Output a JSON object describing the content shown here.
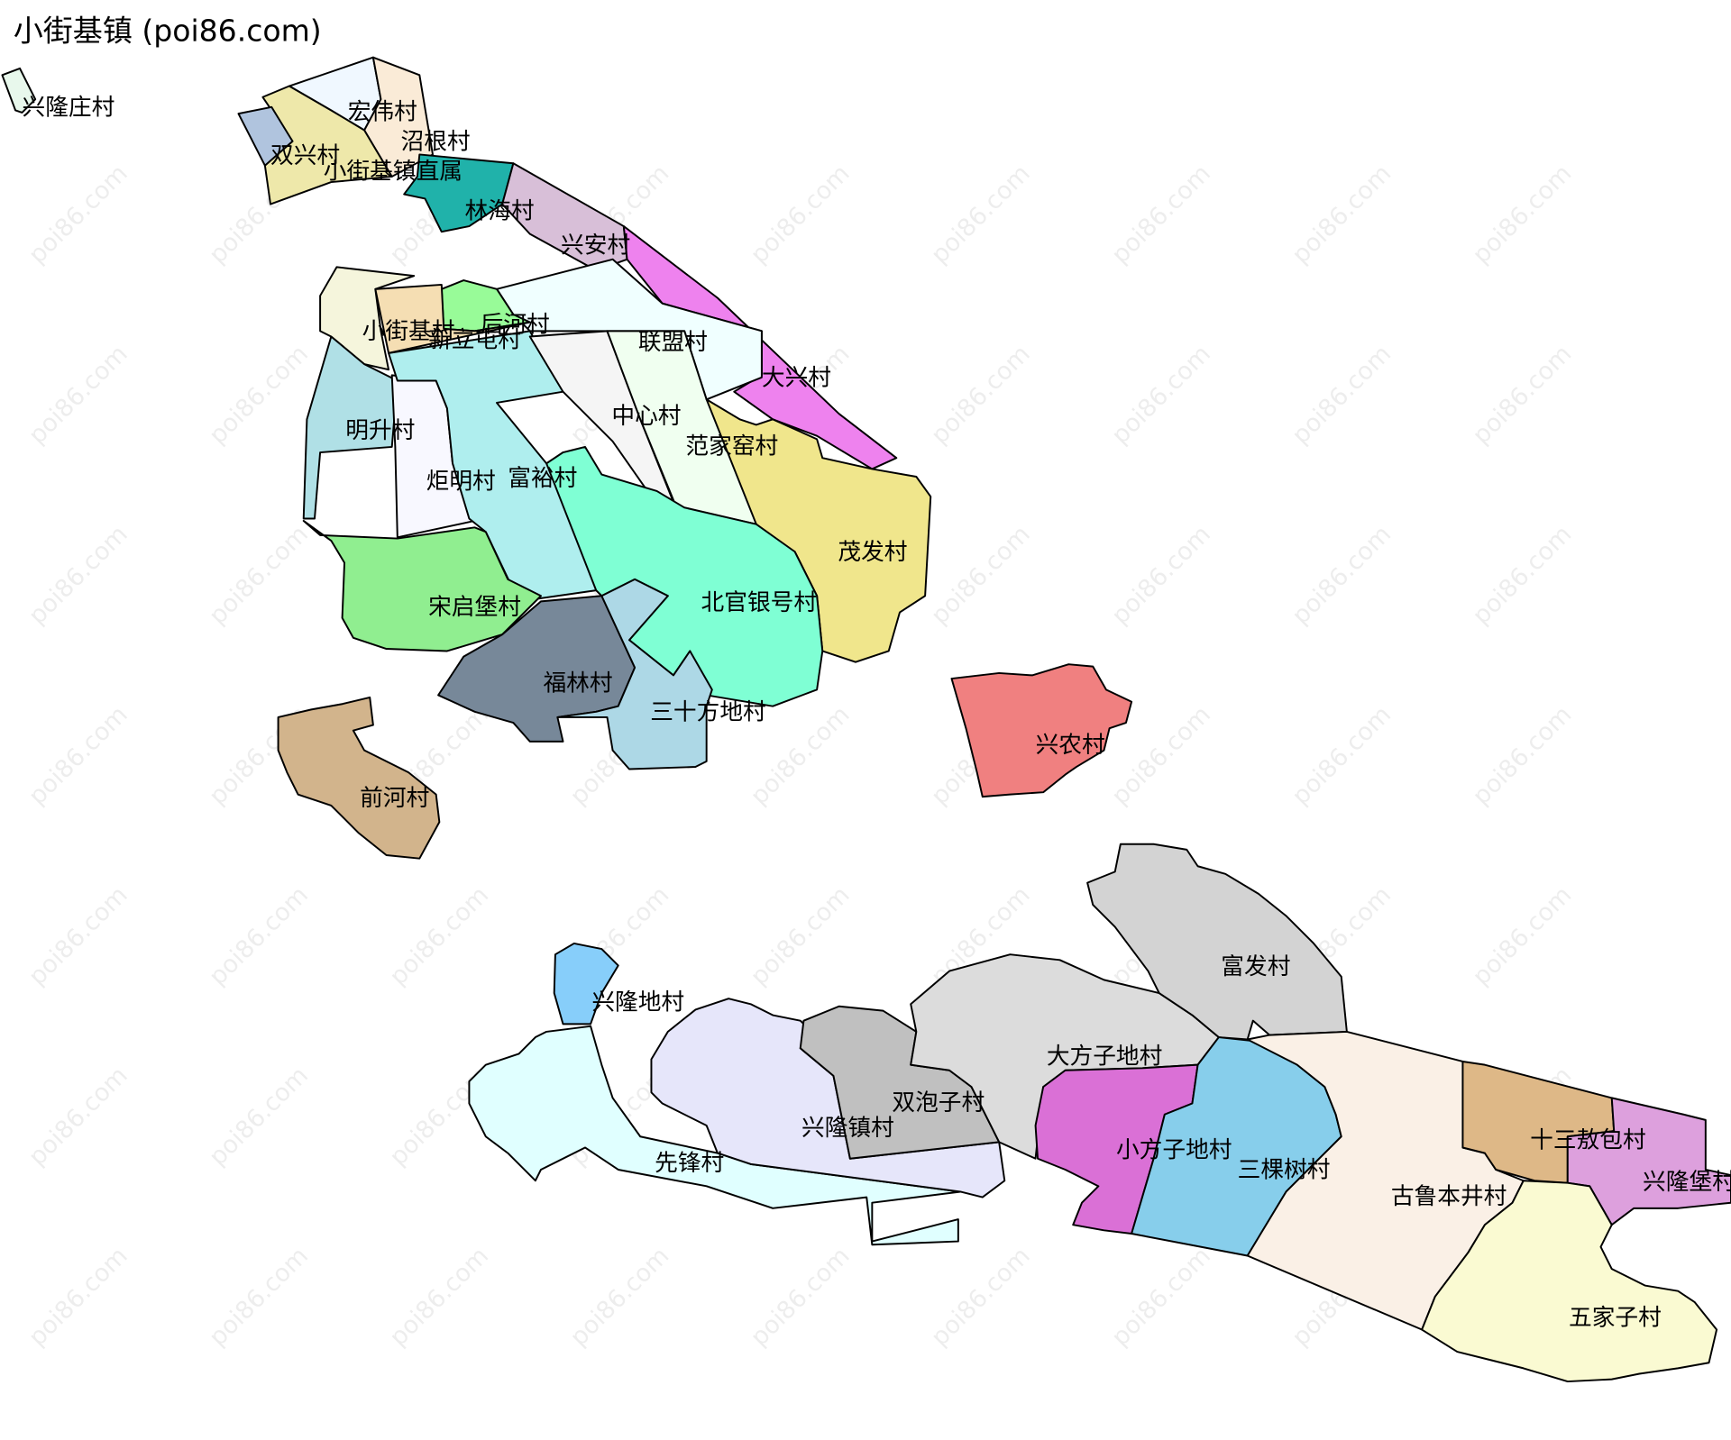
{
  "title": "小街基镇 (poi86.com)",
  "watermark": "poi86.com",
  "regions": [
    {
      "name": "兴隆庄村",
      "color": "#e8f8ec"
    },
    {
      "name": "宏伟村",
      "color": "#f0f8ff"
    },
    {
      "name": "沼根村",
      "color": "#faebd7"
    },
    {
      "name": "双兴村",
      "color": "#eee8aa"
    },
    {
      "name": "小街基镇直属",
      "color": "#b0c4de"
    },
    {
      "name": "林海村",
      "color": "#20b2aa"
    },
    {
      "name": "兴安村",
      "color": "#d8bfd8"
    },
    {
      "name": "大兴村",
      "color": "#ee82ee"
    },
    {
      "name": "联盟村",
      "color": "#f0ffff"
    },
    {
      "name": "后河村",
      "color": "#98fb98"
    },
    {
      "name": "小街基村",
      "color": "#f5f5dc"
    },
    {
      "name": "新立屯村",
      "color": "#f5deb3"
    },
    {
      "name": "明升村",
      "color": "#b0e0e6"
    },
    {
      "name": "炬明村",
      "color": "#f8f8ff"
    },
    {
      "name": "富裕村",
      "color": "#afeeee"
    },
    {
      "name": "中心村",
      "color": "#f5f5f5"
    },
    {
      "name": "范家窑村",
      "color": "#f0fff0"
    },
    {
      "name": "茂发村",
      "color": "#f0e68c"
    },
    {
      "name": "北官银号村",
      "color": "#7fffd4"
    },
    {
      "name": "宋启堡村",
      "color": "#90ee90"
    },
    {
      "name": "福林村",
      "color": "#778899"
    },
    {
      "name": "三十方地村",
      "color": "#add8e6"
    },
    {
      "name": "前河村",
      "color": "#d2b48c"
    },
    {
      "name": "兴农村",
      "color": "#f08080"
    },
    {
      "name": "兴隆地村",
      "color": "#87cefa"
    },
    {
      "name": "先锋村",
      "color": "#e0ffff"
    },
    {
      "name": "兴隆镇村",
      "color": "#e6e6fa"
    },
    {
      "name": "双泡子村",
      "color": "#c0c0c0"
    },
    {
      "name": "大方子地村",
      "color": "#dcdcdc"
    },
    {
      "name": "富发村",
      "color": "#d3d3d3"
    },
    {
      "name": "小方子地村",
      "color": "#da70d6"
    },
    {
      "name": "三棵树村",
      "color": "#87ceeb"
    },
    {
      "name": "古鲁本井村",
      "color": "#faf0e6"
    },
    {
      "name": "十三敖包村",
      "color": "#deb887"
    },
    {
      "name": "兴隆堡村",
      "color": "#dda0dd"
    },
    {
      "name": "五家子村",
      "color": "#fafad2"
    }
  ]
}
